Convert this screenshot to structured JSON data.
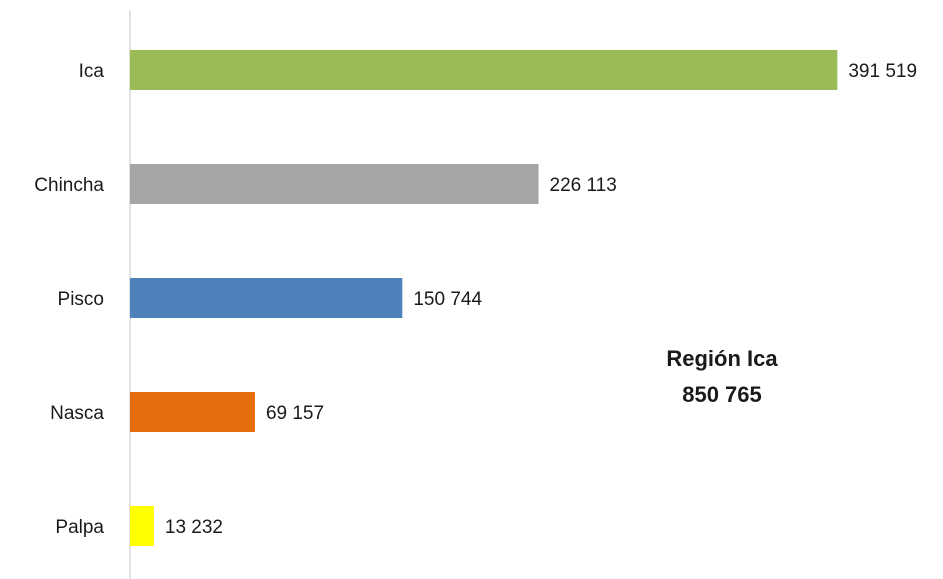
{
  "chart_data": {
    "type": "hbar",
    "categories": [
      "Ica",
      "Chincha",
      "Pisco",
      "Nasca",
      "Palpa"
    ],
    "values": [
      391519,
      226113,
      150744,
      69157,
      13232
    ],
    "value_labels": [
      "391 519",
      "226 113",
      "150 744",
      "69 157",
      "13 232"
    ],
    "colors": [
      "#9bbb59",
      "#a5a5a5",
      "#4f81bd",
      "#e46c0a",
      "#ffff00"
    ],
    "xlim": [
      0,
      450000
    ],
    "annotation": {
      "title": "Región Ica",
      "value": 850765,
      "label": "850 765"
    }
  }
}
